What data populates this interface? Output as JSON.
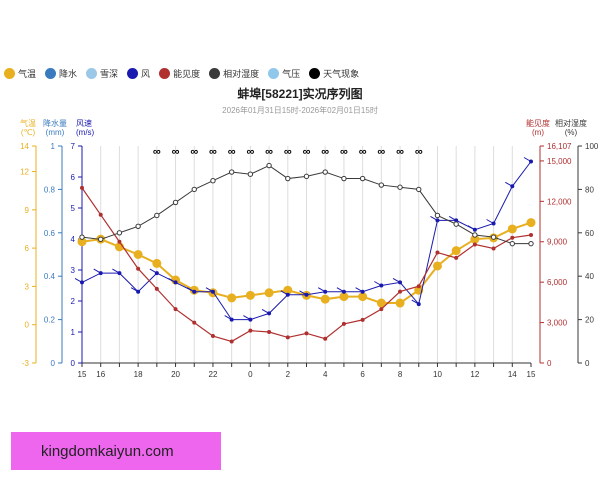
{
  "legend": [
    {
      "label": "气温",
      "color": "#e8b020"
    },
    {
      "label": "降水",
      "color": "#3a7bc0"
    },
    {
      "label": "雪深",
      "color": "#9cc8e8"
    },
    {
      "label": "风",
      "color": "#1a1ab0"
    },
    {
      "label": "能见度",
      "color": "#b03030"
    },
    {
      "label": "相对湿度",
      "color": "#3a3a3a"
    },
    {
      "label": "气压",
      "color": "#90c8ec"
    },
    {
      "label": "天气现象",
      "color": "#000000"
    }
  ],
  "watermark": "kingdomkaiyun.com",
  "chart_data": {
    "type": "line",
    "title": "蚌埠[58221]实况序列图",
    "subtitle": "2026年01月31日15时-2026年02月01日15时",
    "x": [
      "15",
      "16",
      "17",
      "18",
      "19",
      "20",
      "21",
      "22",
      "23",
      "0",
      "1",
      "2",
      "3",
      "4",
      "5",
      "6",
      "7",
      "8",
      "9",
      "10",
      "11",
      "12",
      "13",
      "14",
      "15"
    ],
    "x_tick_labels": [
      "15",
      "16",
      "18",
      "20",
      "22",
      "0",
      "2",
      "4",
      "6",
      "8",
      "10",
      "12",
      "14",
      "15"
    ],
    "weather_symbol": "∞",
    "weather_symbol_hours": [
      "19",
      "20",
      "21",
      "22",
      "23",
      "0",
      "1",
      "2",
      "3",
      "4",
      "5",
      "6",
      "7",
      "8",
      "9"
    ],
    "axes": {
      "temperature": {
        "title": [
          "气温",
          "(℃)"
        ],
        "color": "#e8b020",
        "ylim": [
          -3,
          14
        ],
        "ticks": [
          -3,
          0,
          3,
          6,
          9,
          12,
          14
        ]
      },
      "precipitation": {
        "title": [
          "降水量",
          "(mm)"
        ],
        "color": "#3a7bc0",
        "ylim": [
          0,
          1
        ],
        "ticks": [
          0,
          0.2,
          0.4,
          0.6,
          0.8,
          1
        ]
      },
      "wind": {
        "title": [
          "风速",
          "(m/s)"
        ],
        "color": "#1a1ab0",
        "ylim": [
          0,
          7
        ],
        "ticks": [
          0,
          1,
          2,
          3,
          4,
          5,
          6,
          7
        ]
      },
      "visibility": {
        "title": [
          "能见度",
          "(m)"
        ],
        "color": "#b03030",
        "ylim": [
          0,
          16107
        ],
        "ticks": [
          0,
          3000,
          6000,
          9000,
          12000,
          15000,
          16107
        ],
        "tick_labels": [
          "0",
          "3,000",
          "6,000",
          "9,000",
          "12,000",
          "15,000",
          "16,107"
        ]
      },
      "humidity": {
        "title": [
          "相对湿度",
          "(%)"
        ],
        "color": "#3a3a3a",
        "ylim": [
          0,
          100
        ],
        "ticks": [
          0,
          20,
          40,
          60,
          80,
          100
        ]
      }
    },
    "series": [
      {
        "name": "气温",
        "axis": "temperature",
        "color": "#e8b020",
        "values": [
          6.5,
          6.7,
          6.1,
          5.5,
          4.8,
          3.5,
          2.7,
          2.5,
          2.1,
          2.3,
          2.5,
          2.7,
          2.3,
          2.0,
          2.2,
          2.2,
          1.7,
          1.7,
          2.7,
          4.6,
          5.8,
          6.7,
          6.8,
          7.5,
          8.0
        ]
      },
      {
        "name": "风",
        "axis": "wind",
        "color": "#1a1ab0",
        "values": [
          2.6,
          2.9,
          2.9,
          2.3,
          2.9,
          2.6,
          2.3,
          2.3,
          1.4,
          1.4,
          1.6,
          2.2,
          2.2,
          2.3,
          2.3,
          2.3,
          2.5,
          2.6,
          1.9,
          4.6,
          4.6,
          4.3,
          4.5,
          5.7,
          6.5
        ]
      },
      {
        "name": "能见度",
        "axis": "visibility",
        "color": "#b03030",
        "values": [
          13000,
          11000,
          9000,
          7000,
          5500,
          4000,
          3000,
          2000,
          1600,
          2400,
          2300,
          1900,
          2200,
          1800,
          2900,
          3200,
          4000,
          5300,
          5700,
          8200,
          7800,
          8800,
          8500,
          9300,
          9500
        ]
      },
      {
        "name": "相对湿度",
        "axis": "humidity",
        "color": "#3a3a3a",
        "values": [
          58,
          57,
          60,
          63,
          68,
          74,
          80,
          84,
          88,
          87,
          91,
          85,
          86,
          88,
          85,
          85,
          82,
          81,
          80,
          68,
          64,
          59,
          58,
          55,
          55
        ]
      }
    ]
  }
}
